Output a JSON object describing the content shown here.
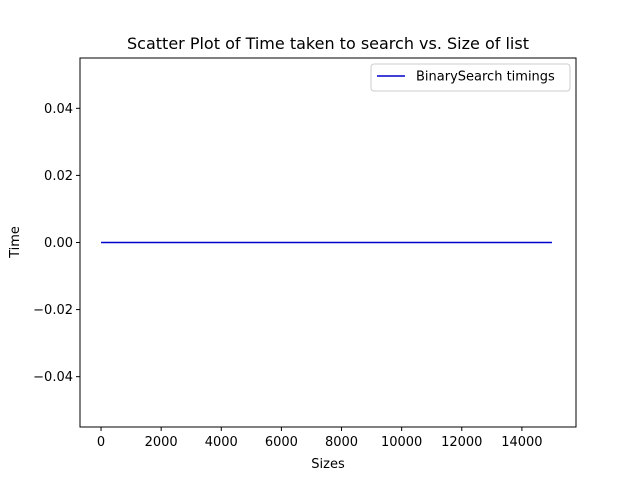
{
  "chart_data": {
    "type": "line",
    "title": "Scatter Plot of Time taken to search vs. Size of list",
    "xlabel": "Sizes",
    "ylabel": "Time",
    "xlim": [
      -700,
      15800
    ],
    "ylim": [
      -0.055,
      0.055
    ],
    "xticks": [
      0,
      2000,
      4000,
      6000,
      8000,
      10000,
      12000,
      14000
    ],
    "xtick_labels": [
      "0",
      "2000",
      "4000",
      "6000",
      "8000",
      "10000",
      "12000",
      "14000"
    ],
    "yticks": [
      -0.04,
      -0.02,
      0.0,
      0.02,
      0.04
    ],
    "ytick_labels": [
      "−0.04",
      "−0.02",
      "0.00",
      "0.02",
      "0.04"
    ],
    "grid": false,
    "legend_position": "upper right",
    "series": [
      {
        "name": "BinarySearch timings",
        "color": "#0000cc",
        "x": [
          0,
          15000
        ],
        "y": [
          0.0,
          0.0
        ]
      }
    ]
  }
}
